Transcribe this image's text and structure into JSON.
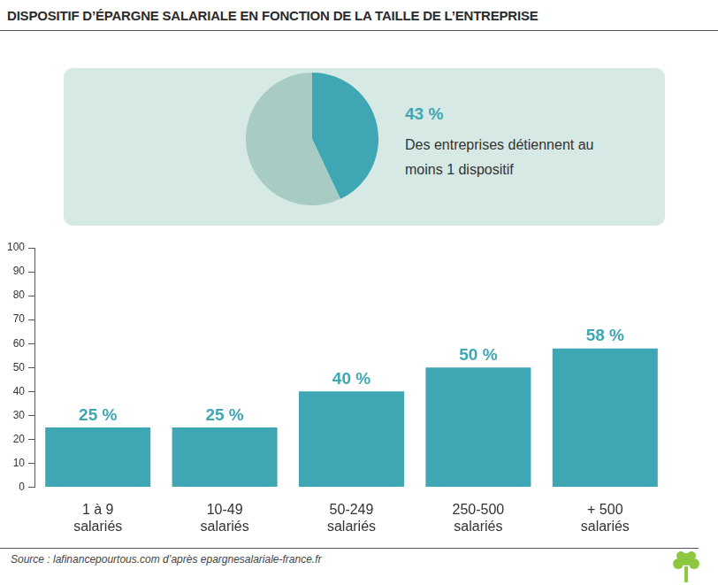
{
  "title": "DISPOSITIF D’ÉPARGNE SALARIALE EN FONCTION DE LA TAILLE DE L’ENTREPRISE",
  "source": "Source : lafinancepourtous.com d’après epargnesalariale-france.fr",
  "chart_data": [
    {
      "type": "pie",
      "values": [
        43,
        57
      ],
      "value_labels": [
        "43 %",
        null
      ],
      "colors": [
        "#3fa6b3",
        "#a8ccc4"
      ],
      "annotation": "Des entreprises détiennent au moins 1 dispositif"
    },
    {
      "type": "bar",
      "categories": [
        "1 à 9 salariés",
        "10-49 salariés",
        "50-249 salariés",
        "250-500 salariés",
        "+ 500 salariés"
      ],
      "values": [
        25,
        25,
        40,
        50,
        58
      ],
      "value_labels": [
        "25 %",
        "25 %",
        "40 %",
        "50 %",
        "58 %"
      ],
      "data_labels": true,
      "color": "#3fa6b3",
      "ylim": [
        0,
        100
      ],
      "yticks": [
        0,
        10,
        20,
        30,
        40,
        50,
        60,
        70,
        80,
        90,
        100
      ],
      "grid": false
    }
  ]
}
